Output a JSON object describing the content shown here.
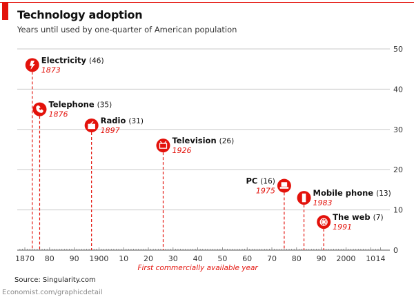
{
  "title": "Technology adoption",
  "subtitle": "Years until used by one-quarter of American population",
  "source": "Source: Singularity.com",
  "credit": "Economist.com/graphicdetail",
  "colors": {
    "accent": "#e3120b",
    "grid": "#c8c8c8",
    "text": "#222222"
  },
  "chart_data": {
    "type": "scatter",
    "title": "Technology adoption",
    "subtitle": "Years until used by one-quarter of American population",
    "xlabel": "First commercially available year",
    "ylabel": "",
    "xlim": [
      1867,
      2015
    ],
    "ylim": [
      0,
      50
    ],
    "grid": true,
    "x_ticks": [
      1870,
      1880,
      1890,
      1900,
      1910,
      1920,
      1930,
      1940,
      1950,
      1960,
      1970,
      1980,
      1990,
      2000,
      2010,
      2014
    ],
    "x_tick_labels": [
      "1870",
      "80",
      "90",
      "1900",
      "10",
      "20",
      "30",
      "40",
      "50",
      "60",
      "70",
      "80",
      "90",
      "2000",
      "10",
      "14"
    ],
    "y_ticks": [
      0,
      10,
      20,
      30,
      40,
      50
    ],
    "y_tick_labels": [
      "0",
      "10",
      "20",
      "30",
      "40",
      "50"
    ],
    "points": [
      {
        "name": "Electricity",
        "value_label": "(46)",
        "year_label": "1873",
        "x": 1873,
        "y": 46,
        "icon": "lightning-icon"
      },
      {
        "name": "Telephone",
        "value_label": "(35)",
        "year_label": "1876",
        "x": 1876,
        "y": 35,
        "icon": "phone-icon"
      },
      {
        "name": "Radio",
        "value_label": "(31)",
        "year_label": "1897",
        "x": 1897,
        "y": 31,
        "icon": "radio-icon"
      },
      {
        "name": "Television",
        "value_label": "(26)",
        "year_label": "1926",
        "x": 1926,
        "y": 26,
        "icon": "tv-icon"
      },
      {
        "name": "PC",
        "value_label": "(16)",
        "year_label": "1975",
        "x": 1975,
        "y": 16,
        "icon": "computer-icon",
        "label_side": "left"
      },
      {
        "name": "Mobile phone",
        "value_label": "(13)",
        "year_label": "1983",
        "x": 1983,
        "y": 13,
        "icon": "mobile-phone-icon"
      },
      {
        "name": "The web",
        "value_label": "(7)",
        "year_label": "1991",
        "x": 1991,
        "y": 7,
        "icon": "web-icon"
      }
    ]
  }
}
